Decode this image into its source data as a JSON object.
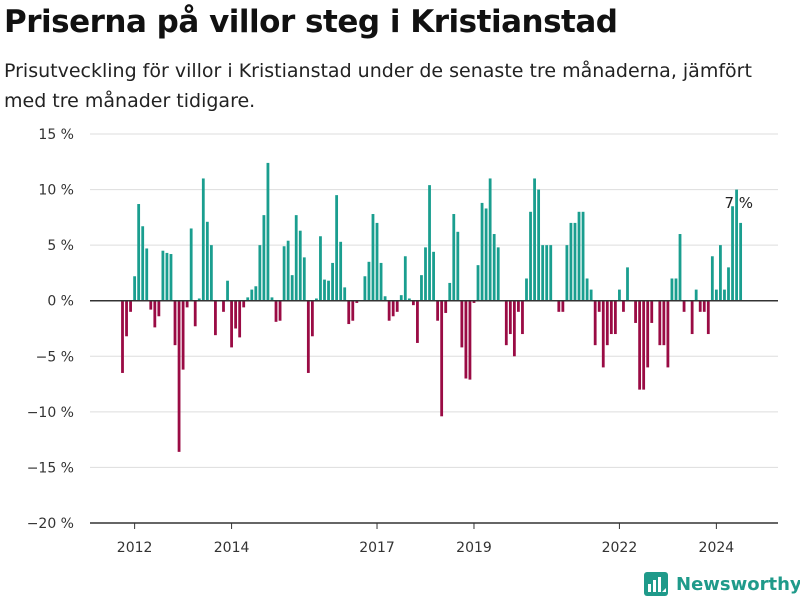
{
  "chart_data": {
    "type": "bar",
    "title": "Priserna på villor steg i Kristianstad",
    "subtitle": "Prisutveckling för villor i Kristianstad under de senaste tre månaderna, jämfört med tre månader tidigare.",
    "start": "2011-10",
    "x_tick_labels": [
      "2012",
      "2014",
      "2017",
      "2019",
      "2022",
      "2024"
    ],
    "x_tick_months": [
      "2012-01",
      "2014-01",
      "2017-01",
      "2019-01",
      "2022-01",
      "2024-01"
    ],
    "y_tick_labels": [
      "15 %",
      "10 %",
      "5 %",
      "0 %",
      "−5 %",
      "−10 %",
      "−15 %",
      "−20 %"
    ],
    "ylim": [
      -20,
      15
    ],
    "grid": true,
    "colors": {
      "positive": "#1a9e8f",
      "negative": "#9a0b44",
      "axis": "#333333",
      "grid": "#dddddd"
    },
    "annotation": {
      "text": "7 %",
      "month": "2024-10",
      "value": 7
    },
    "values": [
      -6.5,
      -3.2,
      -1.0,
      2.2,
      8.7,
      6.7,
      4.7,
      -0.8,
      -2.4,
      -1.4,
      4.5,
      4.3,
      4.2,
      -4.0,
      -13.6,
      -6.2,
      -0.6,
      6.5,
      -2.3,
      0.2,
      11.0,
      7.1,
      5.0,
      -3.1,
      0.0,
      -1.0,
      1.8,
      -4.2,
      -2.5,
      -3.3,
      -0.6,
      0.3,
      1.0,
      1.3,
      5.0,
      7.7,
      12.4,
      0.3,
      -1.9,
      -1.8,
      4.9,
      5.4,
      2.3,
      7.7,
      6.3,
      3.9,
      -6.5,
      -3.2,
      0.2,
      5.8,
      1.9,
      1.8,
      3.4,
      9.5,
      5.3,
      1.2,
      -2.1,
      -1.8,
      -0.2,
      0.0,
      2.2,
      3.5,
      7.8,
      7.0,
      3.4,
      0.4,
      -1.8,
      -1.4,
      -1.0,
      0.5,
      4.0,
      0.2,
      -0.4,
      -3.8,
      2.3,
      4.8,
      10.4,
      4.4,
      -1.8,
      -10.4,
      -1.1,
      1.6,
      7.8,
      6.2,
      -4.2,
      -7.0,
      -7.1,
      -0.2,
      3.2,
      8.8,
      8.3,
      11.0,
      6.0,
      4.8,
      0.0,
      -4.0,
      -3.0,
      -5.0,
      -1.0,
      -3.0,
      2.0,
      8.0,
      11.0,
      10.0,
      5.0,
      5.0,
      5.0,
      0.0,
      -1.0,
      -1.0,
      5.0,
      7.0,
      7.0,
      8.0,
      8.0,
      2.0,
      1.0,
      -4.0,
      -1.0,
      -6.0,
      -4.0,
      -3.0,
      -3.0,
      1.0,
      -1.0,
      3.0,
      0.0,
      -2.0,
      -8.0,
      -8.0,
      -6.0,
      -2.0,
      0.0,
      -4.0,
      -4.0,
      -6.0,
      2.0,
      2.0,
      6.0,
      -1.0,
      0.0,
      -3.0,
      1.0,
      -1.0,
      -1.0,
      -3.0,
      4.0,
      1.0,
      5.0,
      1.0,
      3.0,
      8.5,
      10.0,
      7.0
    ]
  },
  "brand": {
    "name": "Newsworthy"
  }
}
